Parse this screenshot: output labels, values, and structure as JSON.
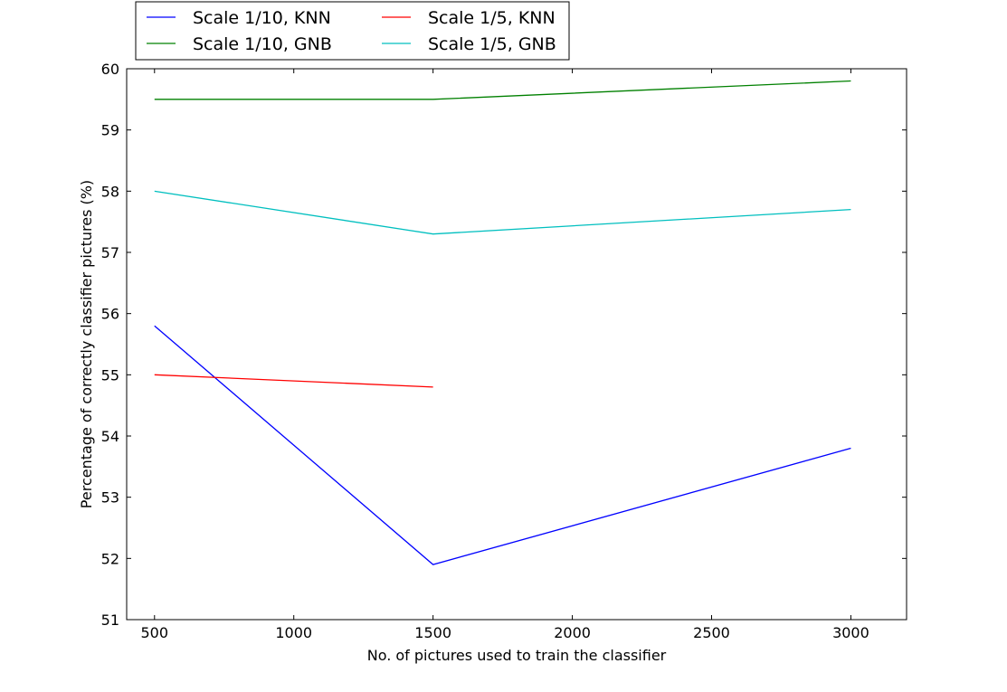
{
  "chart_data": {
    "type": "line",
    "title": "",
    "xlabel": "No. of pictures used to train the classifier",
    "ylabel": "Percentage of correctly classifier pictures (%)",
    "xlim": [
      400,
      3200
    ],
    "ylim": [
      51,
      60
    ],
    "x_ticks": [
      500,
      1000,
      1500,
      2000,
      2500,
      3000
    ],
    "y_ticks": [
      51,
      52,
      53,
      54,
      55,
      56,
      57,
      58,
      59,
      60
    ],
    "grid": false,
    "legend_position": "top, outside plot, two columns",
    "series": [
      {
        "name": "Scale 1/10, KNN",
        "color": "#0000ff",
        "x": [
          500,
          1500,
          3000
        ],
        "y": [
          55.8,
          51.9,
          53.8
        ]
      },
      {
        "name": "Scale 1/10, GNB",
        "color": "#008000",
        "x": [
          500,
          1500,
          3000
        ],
        "y": [
          59.5,
          59.5,
          59.8
        ]
      },
      {
        "name": "Scale 1/5, KNN",
        "color": "#ff0000",
        "x": [
          500,
          1500
        ],
        "y": [
          55.0,
          54.8
        ]
      },
      {
        "name": "Scale 1/5, GNB",
        "color": "#00bfbf",
        "x": [
          500,
          1500,
          3000
        ],
        "y": [
          58.0,
          57.3,
          57.7
        ]
      }
    ]
  }
}
